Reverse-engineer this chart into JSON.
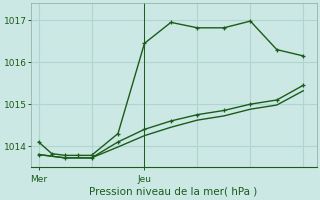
{
  "title": "Pression niveau de la mer( hPa )",
  "background_color": "#cce8e4",
  "line_color": "#1a5c1a",
  "grid_color": "#b0d4cf",
  "ylim": [
    1013.5,
    1017.4
  ],
  "yticks": [
    1014,
    1015,
    1016,
    1017
  ],
  "xtick_positions": [
    0,
    4
  ],
  "xtick_labels": [
    "Mer",
    "Jeu"
  ],
  "series1_x": [
    0,
    0.5,
    1.0,
    1.5,
    2.0,
    3.0,
    4.0,
    5.0,
    6.0,
    7.0,
    8.0,
    9.0,
    10.0
  ],
  "series1_y": [
    1014.1,
    1013.82,
    1013.78,
    1013.78,
    1013.78,
    1014.3,
    1016.45,
    1016.95,
    1016.82,
    1016.82,
    1016.98,
    1016.3,
    1016.15
  ],
  "series2_x": [
    0,
    1.0,
    2.0,
    3.0,
    4.0,
    5.0,
    6.0,
    7.0,
    8.0,
    9.0,
    10.0
  ],
  "series2_y": [
    1013.8,
    1013.72,
    1013.72,
    1014.1,
    1014.4,
    1014.6,
    1014.75,
    1014.85,
    1015.0,
    1015.1,
    1015.45
  ],
  "series3_x": [
    0,
    1.0,
    2.0,
    3.0,
    4.0,
    5.0,
    6.0,
    7.0,
    8.0,
    9.0,
    10.0
  ],
  "series3_y": [
    1013.8,
    1013.72,
    1013.72,
    1013.98,
    1014.25,
    1014.45,
    1014.62,
    1014.72,
    1014.88,
    1014.98,
    1015.32
  ],
  "xlim": [
    -0.3,
    10.5
  ],
  "vline_x": 4.0,
  "marker_size": 3.5,
  "linewidth": 1.0
}
